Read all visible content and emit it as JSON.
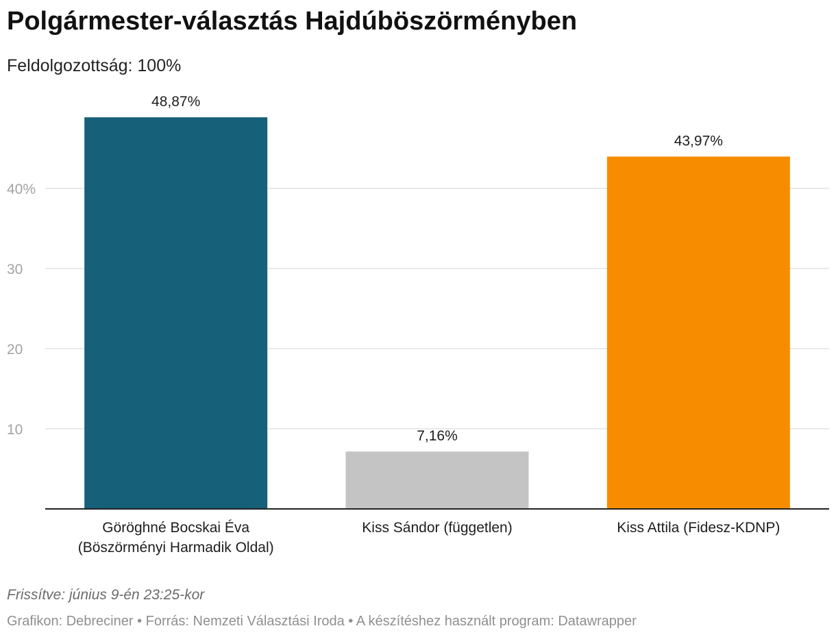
{
  "header": {
    "title": "Polgármester-választás Hajdúböszörményben",
    "subtitle": "Feldolgozottság: 100%"
  },
  "chart_data": {
    "type": "bar",
    "title": "Polgármester-választás Hajdúböszörményben",
    "subtitle": "Feldolgozottság: 100%",
    "categories": [
      [
        "Göröghné Bocskai Éva",
        "(Böszörményi Harmadik Oldal)"
      ],
      [
        "Kiss Sándor (független)"
      ],
      [
        "Kiss Attila (Fidesz-KDNP)"
      ]
    ],
    "values": [
      48.87,
      7.16,
      43.97
    ],
    "value_labels": [
      "48,87%",
      "7,16%",
      "43,97%"
    ],
    "colors": [
      "#17607a",
      "#c4c4c4",
      "#f88c00"
    ],
    "ylim": [
      0,
      52
    ],
    "yticks": [
      10,
      20,
      30,
      40
    ],
    "ytick_labels": [
      "10",
      "20",
      "30",
      "40%"
    ],
    "grid": true,
    "xlabel": "",
    "ylabel": ""
  },
  "footer": {
    "updated": "Frissítve: június 9-én 23:25-kor",
    "credits": "Grafikon: Debreciner • Forrás: Nemzeti Választási Iroda • A készítéshez használt program: Datawrapper"
  }
}
